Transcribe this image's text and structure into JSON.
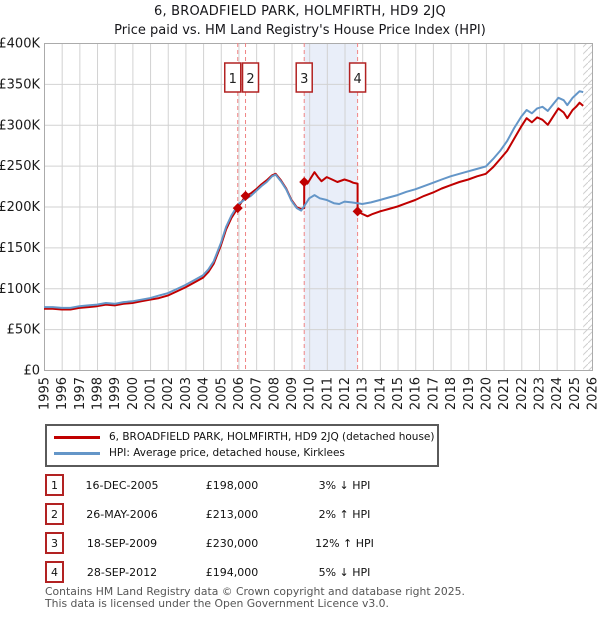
{
  "title": "6, BROADFIELD PARK, HOLMFIRTH, HD9 2JQ",
  "subtitle": "Price paid vs. HM Land Registry's House Price Index (HPI)",
  "chart_data": {
    "type": "line",
    "title": "6, BROADFIELD PARK, HOLMFIRTH, HD9 2JQ",
    "xlabel": "",
    "ylabel": "",
    "x_ticks": [
      1995,
      1996,
      1997,
      1998,
      1999,
      2000,
      2001,
      2002,
      2003,
      2004,
      2005,
      2006,
      2007,
      2008,
      2009,
      2010,
      2011,
      2012,
      2013,
      2014,
      2015,
      2016,
      2017,
      2018,
      2019,
      2020,
      2021,
      2022,
      2023,
      2024,
      2025,
      2026
    ],
    "y_ticks": [
      {
        "value": 0,
        "label": "£0"
      },
      {
        "value": 50,
        "label": "£50K"
      },
      {
        "value": 100,
        "label": "£100K"
      },
      {
        "value": 150,
        "label": "£150K"
      },
      {
        "value": 200,
        "label": "£200K"
      },
      {
        "value": 250,
        "label": "£250K"
      },
      {
        "value": 300,
        "label": "£300K"
      },
      {
        "value": 350,
        "label": "£350K"
      },
      {
        "value": 400,
        "label": "£400K"
      }
    ],
    "y_unit": "GBP thousands",
    "xlim": [
      1995,
      2026
    ],
    "ylim": [
      0,
      400
    ],
    "grid": true,
    "hatch_future_from": 2025.5,
    "shaded_region": {
      "from": 2009.72,
      "to": 2012.74,
      "color": "#e9eef9"
    },
    "marker_line_color": "#f08585",
    "grid_color": "#d2d2d2",
    "border_color": "#ababab",
    "hatch_color": "#cfcfcf",
    "series": [
      {
        "name": "6, BROADFIELD PARK, HOLMFIRTH, HD9 2JQ (detached house)",
        "color": "#c00000",
        "points": [
          [
            1995.0,
            75
          ],
          [
            1995.5,
            75
          ],
          [
            1996.0,
            74
          ],
          [
            1996.5,
            74
          ],
          [
            1997.0,
            76
          ],
          [
            1997.5,
            77
          ],
          [
            1998.0,
            78
          ],
          [
            1998.5,
            80
          ],
          [
            1999.0,
            79
          ],
          [
            1999.5,
            81
          ],
          [
            2000.0,
            82
          ],
          [
            2000.5,
            84
          ],
          [
            2001.0,
            86
          ],
          [
            2001.5,
            88
          ],
          [
            2002.0,
            91
          ],
          [
            2002.5,
            96
          ],
          [
            2003.0,
            101
          ],
          [
            2003.5,
            107
          ],
          [
            2004.0,
            113
          ],
          [
            2004.3,
            120
          ],
          [
            2004.6,
            130
          ],
          [
            2005.0,
            152
          ],
          [
            2005.3,
            172
          ],
          [
            2005.6,
            186
          ],
          [
            2005.96,
            198
          ],
          [
            2006.4,
            213
          ],
          [
            2006.7,
            216
          ],
          [
            2007.0,
            221
          ],
          [
            2007.3,
            227
          ],
          [
            2007.6,
            232
          ],
          [
            2007.9,
            238
          ],
          [
            2008.1,
            240
          ],
          [
            2008.4,
            232
          ],
          [
            2008.7,
            222
          ],
          [
            2009.0,
            208
          ],
          [
            2009.3,
            199
          ],
          [
            2009.55,
            197
          ],
          [
            2009.72,
            198
          ],
          [
            2009.72,
            230
          ],
          [
            2009.9,
            228
          ],
          [
            2010.1,
            235
          ],
          [
            2010.3,
            242
          ],
          [
            2010.5,
            236
          ],
          [
            2010.7,
            231
          ],
          [
            2011.0,
            236
          ],
          [
            2011.3,
            233
          ],
          [
            2011.6,
            230
          ],
          [
            2012.0,
            233
          ],
          [
            2012.3,
            231
          ],
          [
            2012.5,
            229
          ],
          [
            2012.74,
            228
          ],
          [
            2012.74,
            194
          ],
          [
            2013.0,
            191
          ],
          [
            2013.3,
            188
          ],
          [
            2013.6,
            191
          ],
          [
            2014.0,
            194
          ],
          [
            2014.5,
            197
          ],
          [
            2015.0,
            200
          ],
          [
            2015.5,
            204
          ],
          [
            2016.0,
            208
          ],
          [
            2016.5,
            213
          ],
          [
            2017.0,
            217
          ],
          [
            2017.5,
            222
          ],
          [
            2018.0,
            226
          ],
          [
            2018.5,
            230
          ],
          [
            2019.0,
            233
          ],
          [
            2019.5,
            237
          ],
          [
            2020.0,
            240
          ],
          [
            2020.4,
            248
          ],
          [
            2020.8,
            258
          ],
          [
            2021.2,
            268
          ],
          [
            2021.6,
            283
          ],
          [
            2022.0,
            298
          ],
          [
            2022.3,
            308
          ],
          [
            2022.6,
            303
          ],
          [
            2022.9,
            309
          ],
          [
            2023.2,
            306
          ],
          [
            2023.5,
            300
          ],
          [
            2023.8,
            310
          ],
          [
            2024.1,
            320
          ],
          [
            2024.4,
            315
          ],
          [
            2024.6,
            308
          ],
          [
            2024.9,
            318
          ],
          [
            2025.1,
            322
          ],
          [
            2025.3,
            327
          ],
          [
            2025.5,
            323
          ]
        ]
      },
      {
        "name": "HPI: Average price, detached house, Kirklees",
        "color": "#6496c8",
        "points": [
          [
            1995.0,
            77
          ],
          [
            1995.5,
            77
          ],
          [
            1996.0,
            76
          ],
          [
            1996.5,
            76
          ],
          [
            1997.0,
            78
          ],
          [
            1997.5,
            79
          ],
          [
            1998.0,
            80
          ],
          [
            1998.5,
            82
          ],
          [
            1999.0,
            81
          ],
          [
            1999.5,
            83
          ],
          [
            2000.0,
            84
          ],
          [
            2000.5,
            86
          ],
          [
            2001.0,
            88
          ],
          [
            2001.5,
            91
          ],
          [
            2002.0,
            94
          ],
          [
            2002.5,
            99
          ],
          [
            2003.0,
            104
          ],
          [
            2003.5,
            110
          ],
          [
            2004.0,
            116
          ],
          [
            2004.3,
            123
          ],
          [
            2004.6,
            133
          ],
          [
            2005.0,
            155
          ],
          [
            2005.3,
            175
          ],
          [
            2005.6,
            189
          ],
          [
            2006.0,
            203
          ],
          [
            2006.4,
            209
          ],
          [
            2006.7,
            213
          ],
          [
            2007.0,
            219
          ],
          [
            2007.3,
            225
          ],
          [
            2007.6,
            230
          ],
          [
            2007.9,
            237
          ],
          [
            2008.1,
            239
          ],
          [
            2008.4,
            231
          ],
          [
            2008.7,
            221
          ],
          [
            2009.0,
            207
          ],
          [
            2009.3,
            198
          ],
          [
            2009.55,
            195
          ],
          [
            2009.8,
            203
          ],
          [
            2010.0,
            210
          ],
          [
            2010.3,
            214
          ],
          [
            2010.6,
            210
          ],
          [
            2011.0,
            208
          ],
          [
            2011.4,
            204
          ],
          [
            2011.7,
            203
          ],
          [
            2012.0,
            206
          ],
          [
            2012.4,
            205
          ],
          [
            2012.74,
            204
          ],
          [
            2013.0,
            203
          ],
          [
            2013.5,
            205
          ],
          [
            2014.0,
            208
          ],
          [
            2014.5,
            211
          ],
          [
            2015.0,
            214
          ],
          [
            2015.5,
            218
          ],
          [
            2016.0,
            221
          ],
          [
            2016.5,
            225
          ],
          [
            2017.0,
            229
          ],
          [
            2017.5,
            233
          ],
          [
            2018.0,
            237
          ],
          [
            2018.5,
            240
          ],
          [
            2019.0,
            243
          ],
          [
            2019.5,
            246
          ],
          [
            2020.0,
            249
          ],
          [
            2020.4,
            258
          ],
          [
            2020.8,
            268
          ],
          [
            2021.2,
            280
          ],
          [
            2021.6,
            296
          ],
          [
            2022.0,
            310
          ],
          [
            2022.3,
            318
          ],
          [
            2022.6,
            314
          ],
          [
            2022.9,
            320
          ],
          [
            2023.2,
            322
          ],
          [
            2023.5,
            317
          ],
          [
            2023.8,
            325
          ],
          [
            2024.1,
            333
          ],
          [
            2024.4,
            330
          ],
          [
            2024.6,
            324
          ],
          [
            2024.9,
            333
          ],
          [
            2025.1,
            337
          ],
          [
            2025.3,
            341
          ],
          [
            2025.5,
            340
          ]
        ]
      }
    ],
    "transaction_markers": [
      {
        "label": "1",
        "x": 2005.96,
        "y": 198,
        "label_dx": -5
      },
      {
        "label": "2",
        "x": 2006.4,
        "y": 213,
        "label_dx": 5
      },
      {
        "label": "3",
        "x": 2009.72,
        "y": 230,
        "label_dx": 0
      },
      {
        "label": "4",
        "x": 2012.74,
        "y": 194,
        "label_dx": 0
      }
    ]
  },
  "legend": {
    "items": [
      {
        "label": "6, BROADFIELD PARK, HOLMFIRTH, HD9 2JQ (detached house)",
        "color": "#c00000"
      },
      {
        "label": "HPI: Average price, detached house, Kirklees",
        "color": "#6496c8"
      }
    ]
  },
  "transactions": [
    {
      "num": "1",
      "date": "16-DEC-2005",
      "price": "£198,000",
      "pct": "3%",
      "dir": "↓",
      "vs": "HPI"
    },
    {
      "num": "2",
      "date": "26-MAY-2006",
      "price": "£213,000",
      "pct": "2%",
      "dir": "↑",
      "vs": "HPI"
    },
    {
      "num": "3",
      "date": "18-SEP-2009",
      "price": "£230,000",
      "pct": "12%",
      "dir": "↑",
      "vs": "HPI"
    },
    {
      "num": "4",
      "date": "28-SEP-2012",
      "price": "£194,000",
      "pct": "5%",
      "dir": "↓",
      "vs": "HPI"
    }
  ],
  "footer": {
    "line1": "Contains HM Land Registry data © Crown copyright and database right 2025.",
    "line2": "This data is licensed under the Open Government Licence v3.0."
  }
}
